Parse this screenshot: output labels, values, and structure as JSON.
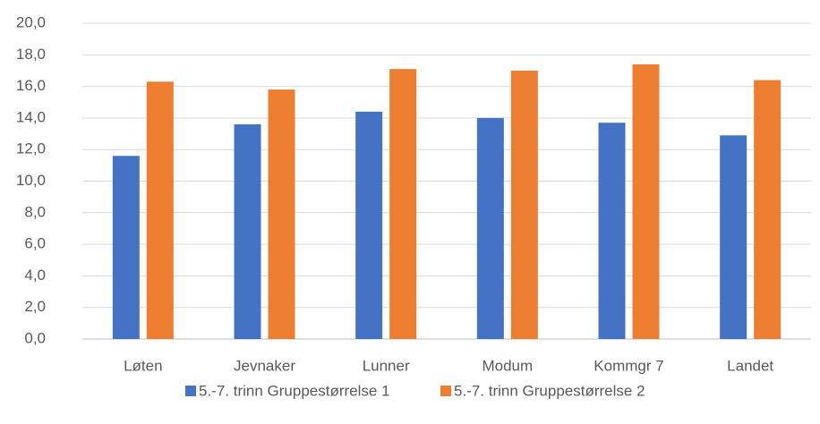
{
  "chart_data": {
    "type": "bar",
    "categories": [
      "Løten",
      "Jevnaker",
      "Lunner",
      "Modum",
      "Kommgr 7",
      "Landet"
    ],
    "series": [
      {
        "name": "5.-7. trinn Gruppestørrelse 1",
        "color": "#4472c4",
        "values": [
          11.6,
          13.6,
          14.4,
          14.0,
          13.7,
          12.9
        ]
      },
      {
        "name": "5.-7. trinn Gruppestørrelse 2",
        "color": "#ed7d31",
        "values": [
          16.3,
          15.8,
          17.1,
          17.0,
          17.4,
          16.4
        ]
      }
    ],
    "ylim": [
      0,
      20
    ],
    "yticks": [
      {
        "value": 0,
        "label": "0,0"
      },
      {
        "value": 2,
        "label": "2,0"
      },
      {
        "value": 4,
        "label": "4,0"
      },
      {
        "value": 6,
        "label": "6,0"
      },
      {
        "value": 8,
        "label": "8,0"
      },
      {
        "value": 10,
        "label": "10,0"
      },
      {
        "value": 12,
        "label": "12,0"
      },
      {
        "value": 14,
        "label": "14,0"
      },
      {
        "value": 16,
        "label": "16,0"
      },
      {
        "value": 18,
        "label": "18,0"
      },
      {
        "value": 20,
        "label": "20,0"
      }
    ],
    "grid": true,
    "legend": "bottom"
  }
}
